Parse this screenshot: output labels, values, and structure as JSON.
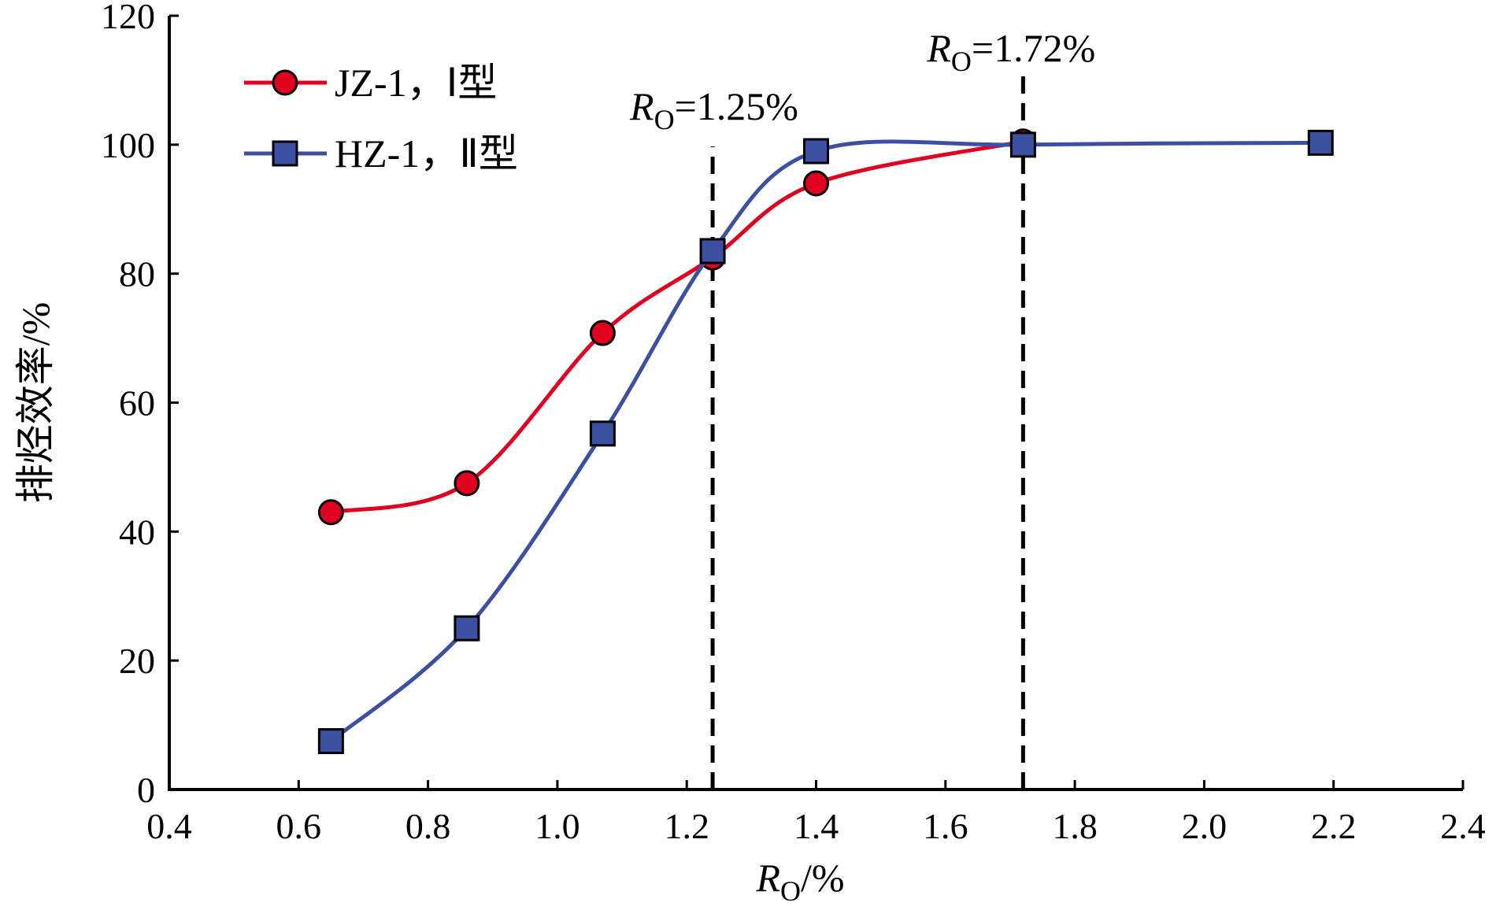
{
  "chart_data": {
    "type": "line",
    "title": "",
    "xlabel": "R_O/%",
    "xlabel_parts": {
      "main": "R",
      "sub": "O",
      "rest": "/%"
    },
    "ylabel": "排烃效率/%",
    "xlim": [
      0.4,
      2.4
    ],
    "ylim": [
      0,
      120
    ],
    "xticks": [
      "0.4",
      "0.6",
      "0.8",
      "1.0",
      "1.2",
      "1.4",
      "1.6",
      "1.8",
      "2.0",
      "2.2",
      "2.4"
    ],
    "yticks": [
      "0",
      "20",
      "40",
      "60",
      "80",
      "100",
      "120"
    ],
    "grid": false,
    "legend_position": "top-left",
    "series": [
      {
        "name": "JZ-1，Ⅰ型",
        "color": "#e0001f",
        "marker": "circle",
        "x": [
          0.65,
          0.86,
          1.07,
          1.24,
          1.4,
          1.72
        ],
        "y": [
          43,
          47.5,
          70.8,
          82.5,
          94,
          100.5
        ]
      },
      {
        "name": "HZ-1，Ⅱ型",
        "color": "#3c4fa0",
        "marker": "square",
        "x": [
          0.65,
          0.86,
          1.07,
          1.24,
          1.4,
          1.72,
          2.18
        ],
        "y": [
          7.5,
          25,
          55.2,
          83.5,
          99,
          100,
          100.3
        ]
      }
    ],
    "annotations": [
      {
        "x": 1.24,
        "label_main": "R",
        "label_sub": "O",
        "label_rest": "=1.25%"
      },
      {
        "x": 1.72,
        "label_main": "R",
        "label_sub": "O",
        "label_rest": "=1.72%"
      }
    ]
  }
}
